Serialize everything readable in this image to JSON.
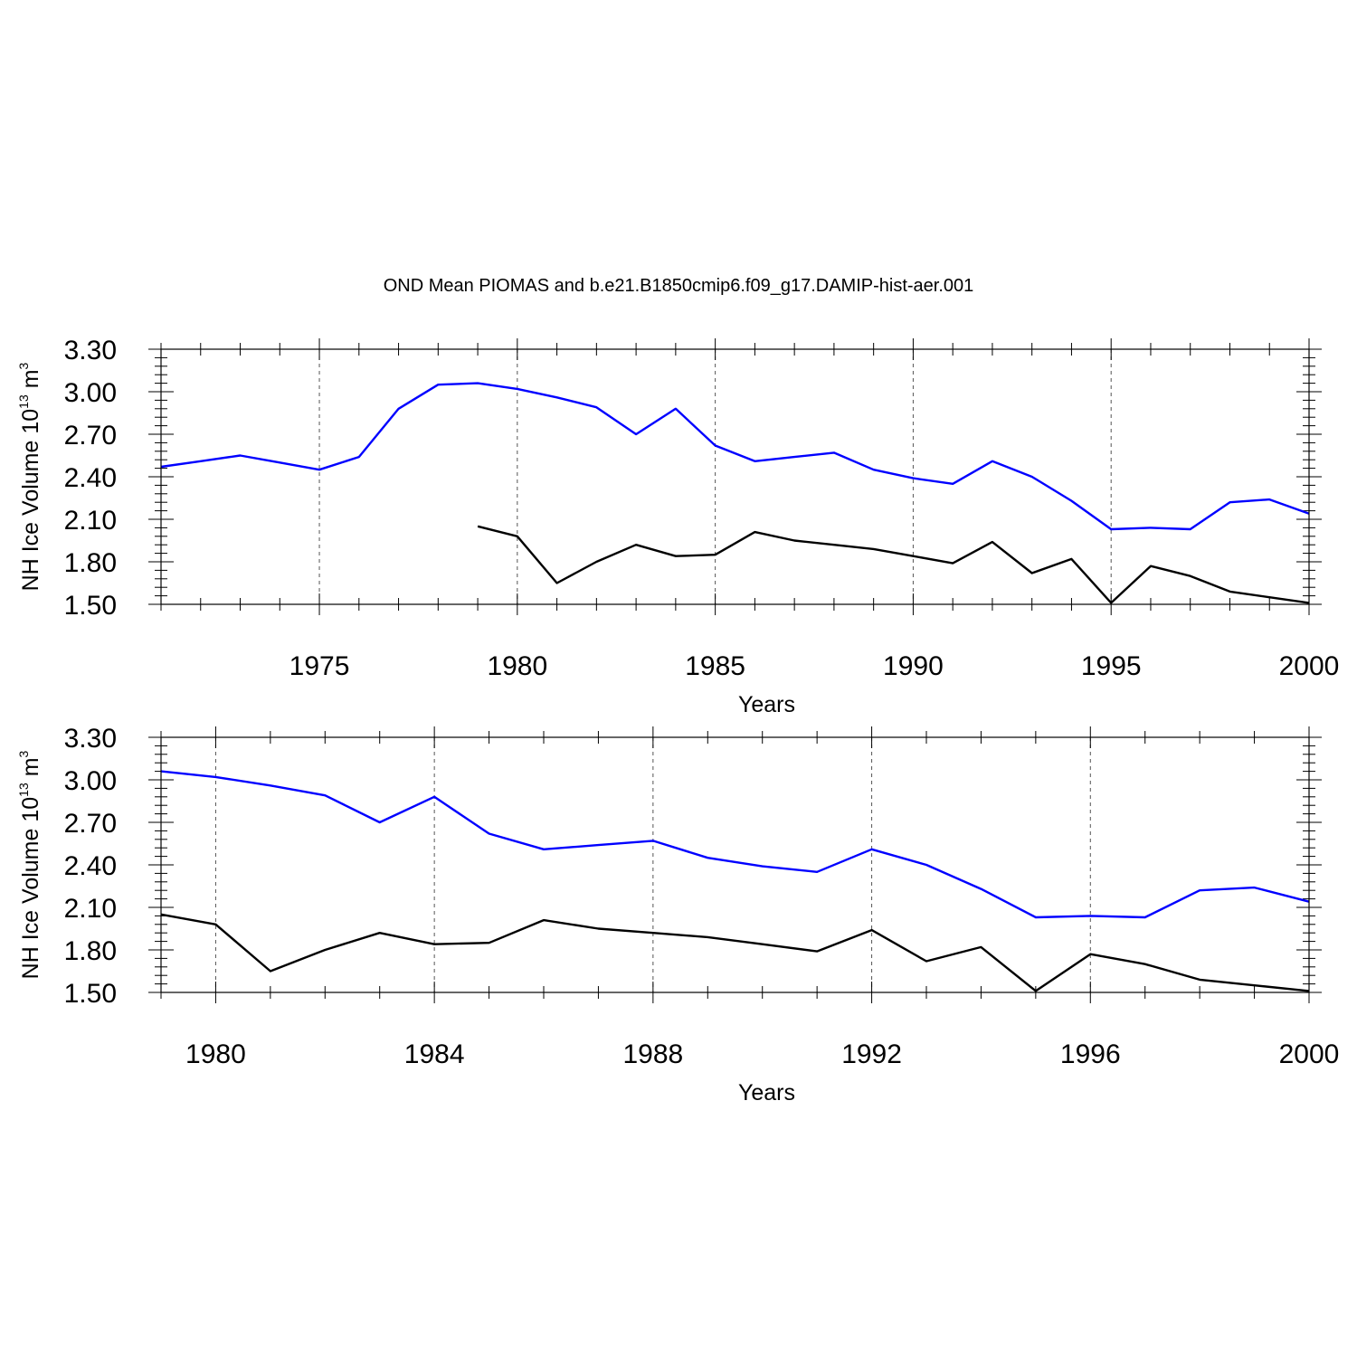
{
  "figure": {
    "title": "OND Mean PIOMAS and b.e21.B1850cmip6.f09_g17.DAMIP-hist-aer.001"
  },
  "chart_data": [
    {
      "type": "line",
      "xlabel": "Years",
      "ylabel": {
        "main": "NH Ice Volume 10",
        "exp": "13",
        "unit": " m",
        "unit_exp": "3"
      },
      "xlim": [
        1971,
        2000
      ],
      "ylim": [
        1.5,
        3.3
      ],
      "yticks": [
        "1.50",
        "1.80",
        "2.10",
        "2.40",
        "2.70",
        "3.00",
        "3.30"
      ],
      "xticks": [
        "1975",
        "1980",
        "1985",
        "1990",
        "1995",
        "2000"
      ],
      "major_x_step": 5,
      "grid": "vertical-dashed-at-major-x",
      "series": [
        {
          "name": "PIOMAS",
          "color": "#0000ff",
          "x": [
            1971,
            1972,
            1973,
            1974,
            1975,
            1976,
            1977,
            1978,
            1979,
            1980,
            1981,
            1982,
            1983,
            1984,
            1985,
            1986,
            1987,
            1988,
            1989,
            1990,
            1991,
            1992,
            1993,
            1994,
            1995,
            1996,
            1997,
            1998,
            1999,
            2000
          ],
          "values": [
            2.47,
            2.51,
            2.55,
            2.5,
            2.45,
            2.54,
            2.88,
            3.05,
            3.06,
            3.02,
            2.96,
            2.89,
            2.7,
            2.88,
            2.62,
            2.51,
            2.54,
            2.57,
            2.45,
            2.39,
            2.35,
            2.51,
            2.4,
            2.23,
            2.03,
            2.04,
            2.03,
            2.22,
            2.24,
            2.14
          ]
        },
        {
          "name": "b.e21.B1850cmip6.f09_g17.DAMIP-hist-aer.001",
          "color": "#000000",
          "x": [
            1979,
            1980,
            1981,
            1982,
            1983,
            1984,
            1985,
            1986,
            1987,
            1988,
            1989,
            1990,
            1991,
            1992,
            1993,
            1994,
            1995,
            1996,
            1997,
            1998,
            1999,
            2000
          ],
          "values": [
            2.05,
            1.98,
            1.65,
            1.8,
            1.92,
            1.84,
            1.85,
            2.01,
            1.95,
            1.92,
            1.89,
            1.84,
            1.79,
            1.94,
            1.72,
            1.82,
            1.51,
            1.77,
            1.7,
            1.59,
            1.55,
            1.51
          ]
        }
      ]
    },
    {
      "type": "line",
      "xlabel": "Years",
      "ylabel": {
        "main": "NH Ice Volume 10",
        "exp": "13",
        "unit": " m",
        "unit_exp": "3"
      },
      "xlim": [
        1979,
        2000
      ],
      "ylim": [
        1.5,
        3.3
      ],
      "yticks": [
        "1.50",
        "1.80",
        "2.10",
        "2.40",
        "2.70",
        "3.00",
        "3.30"
      ],
      "xticks": [
        "1980",
        "1984",
        "1988",
        "1992",
        "1996",
        "2000"
      ],
      "major_x_step": 4,
      "grid": "vertical-dashed-at-major-x",
      "series": [
        {
          "name": "PIOMAS",
          "color": "#0000ff",
          "x": [
            1979,
            1980,
            1981,
            1982,
            1983,
            1984,
            1985,
            1986,
            1987,
            1988,
            1989,
            1990,
            1991,
            1992,
            1993,
            1994,
            1995,
            1996,
            1997,
            1998,
            1999,
            2000
          ],
          "values": [
            3.06,
            3.02,
            2.96,
            2.89,
            2.7,
            2.88,
            2.62,
            2.51,
            2.54,
            2.57,
            2.45,
            2.39,
            2.35,
            2.51,
            2.4,
            2.23,
            2.03,
            2.04,
            2.03,
            2.22,
            2.24,
            2.14
          ]
        },
        {
          "name": "b.e21.B1850cmip6.f09_g17.DAMIP-hist-aer.001",
          "color": "#000000",
          "x": [
            1979,
            1980,
            1981,
            1982,
            1983,
            1984,
            1985,
            1986,
            1987,
            1988,
            1989,
            1990,
            1991,
            1992,
            1993,
            1994,
            1995,
            1996,
            1997,
            1998,
            1999,
            2000
          ],
          "values": [
            2.05,
            1.98,
            1.65,
            1.8,
            1.92,
            1.84,
            1.85,
            2.01,
            1.95,
            1.92,
            1.89,
            1.84,
            1.79,
            1.94,
            1.72,
            1.82,
            1.51,
            1.77,
            1.7,
            1.59,
            1.55,
            1.51
          ]
        }
      ]
    }
  ]
}
